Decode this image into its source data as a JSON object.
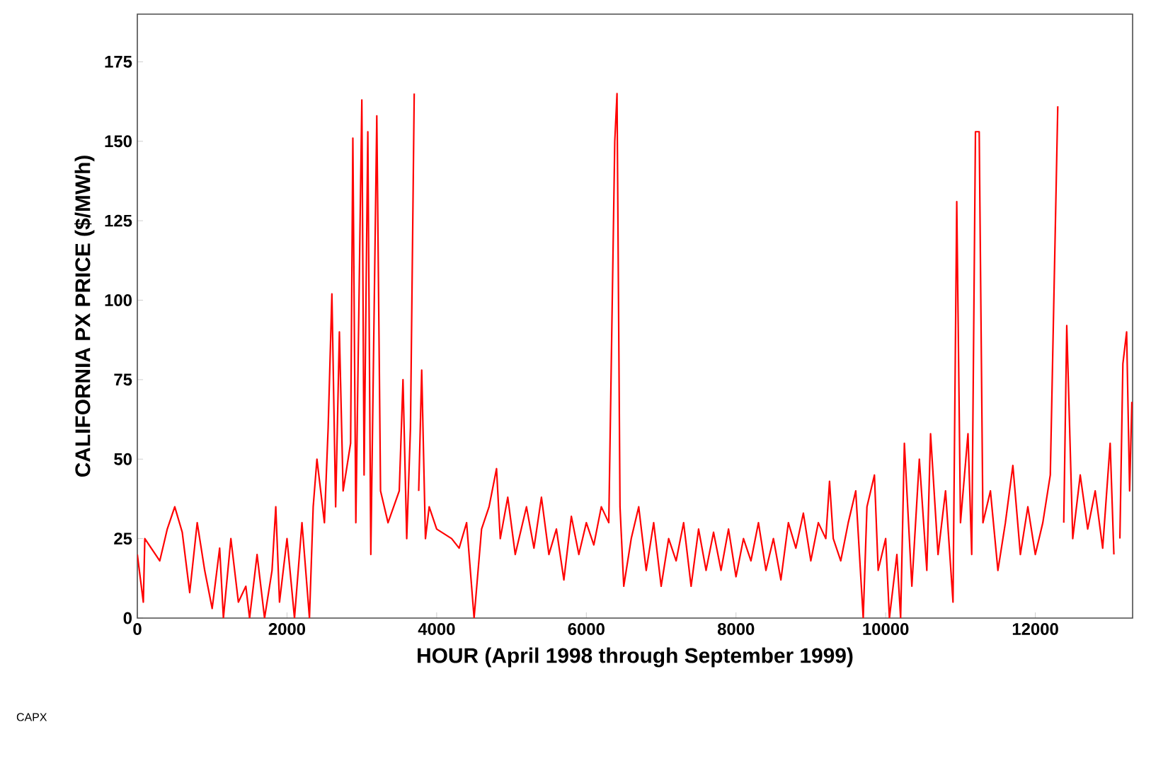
{
  "chart_data": {
    "type": "line",
    "xlabel": "HOUR (April 1998 through September 1999)",
    "ylabel": "CALIFORNIA PX PRICE ($/MWh)",
    "annotations": [
      "CAPX"
    ],
    "xlim": [
      0,
      13300
    ],
    "ylim": [
      0,
      190
    ],
    "xticks": [
      0,
      2000,
      4000,
      6000,
      8000,
      10000,
      12000
    ],
    "yticks": [
      0,
      25,
      50,
      75,
      100,
      125,
      150,
      175
    ],
    "marker": "none",
    "line_style": "solid",
    "series": [
      {
        "color": "#ff0000",
        "x": [
          0,
          80,
          100,
          300,
          400,
          500,
          600,
          700,
          800,
          900,
          1000,
          1100,
          1150,
          1250,
          1350,
          1450,
          1500,
          1600,
          1700,
          1800,
          1850,
          1900,
          2000,
          2100,
          2200,
          2300,
          2350,
          2400,
          2500,
          2550,
          2600,
          2650,
          2700,
          2750,
          2850,
          2880,
          2920,
          3000,
          3030,
          3080,
          3120,
          3200,
          3250,
          3350,
          3500,
          3550,
          3600,
          3650,
          3700,
          3730,
          3760,
          3800,
          3850,
          3900,
          4000,
          4200,
          4300,
          4400,
          4500,
          4600,
          4700,
          4800,
          4850,
          4950,
          5050,
          5200,
          5300,
          5400,
          5500,
          5600,
          5700,
          5800,
          5900,
          6000,
          6100,
          6200,
          6300,
          6380,
          6410,
          6450,
          6500,
          6600,
          6700,
          6800,
          6900,
          7000,
          7100,
          7200,
          7300,
          7400,
          7500,
          7600,
          7700,
          7800,
          7900,
          8000,
          8100,
          8200,
          8300,
          8400,
          8500,
          8600,
          8700,
          8800,
          8900,
          9000,
          9100,
          9200,
          9250,
          9300,
          9400,
          9500,
          9600,
          9650,
          9700,
          9750,
          9850,
          9900,
          10000,
          10050,
          10150,
          10200,
          10250,
          10350,
          10450,
          10550,
          10600,
          10700,
          10800,
          10900,
          10950,
          11000,
          11100,
          11150,
          11200,
          11250,
          11300,
          11400,
          11500,
          11600,
          11700,
          11800,
          11900,
          12000,
          12100,
          12200,
          12300,
          12340,
          12380,
          12420,
          12500,
          12600,
          12700,
          12800,
          12900,
          13000,
          13050,
          13100,
          13130,
          13170,
          13220,
          13260,
          13290
        ],
        "values": [
          20,
          5,
          25,
          18,
          28,
          35,
          27,
          8,
          30,
          15,
          3,
          22,
          0,
          25,
          5,
          10,
          0,
          20,
          0,
          15,
          35,
          5,
          25,
          0,
          30,
          0,
          35,
          50,
          30,
          60,
          102,
          35,
          90,
          40,
          55,
          151,
          30,
          163,
          45,
          153,
          20,
          158,
          40,
          30,
          40,
          75,
          25,
          60,
          165,
          null,
          40,
          78,
          25,
          35,
          28,
          25,
          22,
          30,
          0,
          28,
          35,
          47,
          25,
          38,
          20,
          35,
          22,
          38,
          20,
          28,
          12,
          32,
          20,
          30,
          23,
          35,
          30,
          150,
          165,
          35,
          10,
          25,
          35,
          15,
          30,
          10,
          25,
          18,
          30,
          10,
          28,
          15,
          27,
          15,
          28,
          13,
          25,
          18,
          30,
          15,
          25,
          12,
          30,
          22,
          33,
          18,
          30,
          25,
          43,
          25,
          18,
          30,
          40,
          20,
          0,
          35,
          45,
          15,
          25,
          0,
          20,
          0,
          55,
          10,
          50,
          15,
          58,
          20,
          40,
          5,
          131,
          30,
          58,
          20,
          153,
          153,
          30,
          40,
          15,
          30,
          48,
          20,
          35,
          20,
          30,
          45,
          161,
          null,
          30,
          92,
          25,
          45,
          28,
          40,
          22,
          55,
          20,
          null,
          25,
          80,
          90,
          40,
          68
        ]
      }
    ]
  }
}
